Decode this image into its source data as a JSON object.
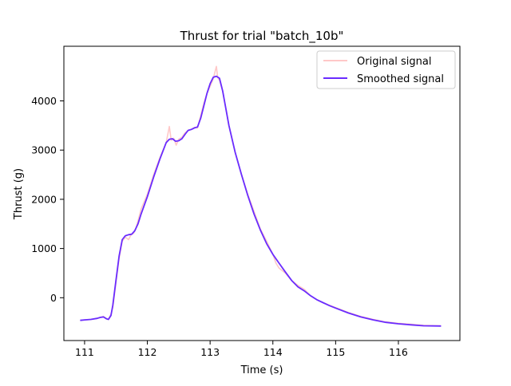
{
  "chart_data": {
    "type": "line",
    "title": "Thrust for trial \"batch_10b\"",
    "xlabel": "Time (s)",
    "ylabel": "Thrust (g)",
    "xlim": [
      110.67,
      116.98
    ],
    "ylim": [
      -870,
      5110
    ],
    "xticks": [
      111,
      112,
      113,
      114,
      115,
      116
    ],
    "yticks": [
      0,
      1000,
      2000,
      3000,
      4000
    ],
    "grid": false,
    "legend_position": "top-right",
    "series": [
      {
        "name": "Original signal",
        "color": "#ffc8c8",
        "x": [
          110.93,
          111.1,
          111.2,
          111.25,
          111.3,
          111.35,
          111.38,
          111.42,
          111.45,
          111.5,
          111.55,
          111.6,
          111.65,
          111.7,
          111.74,
          111.78,
          111.82,
          111.86,
          111.9,
          112.0,
          112.1,
          112.2,
          112.3,
          112.35,
          112.38,
          112.42,
          112.46,
          112.5,
          112.55,
          112.6,
          112.65,
          112.7,
          112.75,
          112.8,
          112.85,
          112.9,
          112.95,
          113.0,
          113.05,
          113.1,
          113.12,
          113.15,
          113.2,
          113.3,
          113.4,
          113.5,
          113.6,
          113.7,
          113.8,
          113.9,
          114.0,
          114.05,
          114.1,
          114.15,
          114.2,
          114.3,
          114.4,
          114.5,
          114.6,
          114.7,
          114.8,
          115.0,
          115.2,
          115.4,
          115.6,
          115.8,
          116.0,
          116.2,
          116.4,
          116.68
        ],
        "y": [
          -460,
          -440,
          -420,
          -400,
          -380,
          -430,
          -440,
          -330,
          -200,
          300,
          800,
          1150,
          1230,
          1180,
          1280,
          1310,
          1420,
          1600,
          1800,
          2100,
          2500,
          2850,
          3150,
          3480,
          3200,
          3240,
          3100,
          3220,
          3260,
          3350,
          3400,
          3420,
          3460,
          3450,
          3700,
          3950,
          4150,
          4300,
          4450,
          4700,
          4480,
          4420,
          4200,
          3500,
          2950,
          2500,
          2100,
          1750,
          1400,
          1150,
          880,
          700,
          600,
          550,
          500,
          350,
          250,
          170,
          40,
          -40,
          -100,
          -200,
          -300,
          -380,
          -440,
          -490,
          -520,
          -540,
          -560,
          -570
        ]
      },
      {
        "name": "Smoothed signal",
        "color": "#6a2cff",
        "x": [
          110.93,
          111.0,
          111.1,
          111.2,
          111.25,
          111.3,
          111.35,
          111.38,
          111.42,
          111.45,
          111.5,
          111.55,
          111.6,
          111.65,
          111.7,
          111.75,
          111.8,
          111.85,
          111.9,
          112.0,
          112.1,
          112.2,
          112.3,
          112.35,
          112.4,
          112.45,
          112.5,
          112.55,
          112.6,
          112.65,
          112.7,
          112.75,
          112.8,
          112.85,
          112.9,
          112.95,
          113.0,
          113.05,
          113.1,
          113.15,
          113.2,
          113.3,
          113.4,
          113.5,
          113.6,
          113.7,
          113.8,
          113.9,
          114.0,
          114.1,
          114.2,
          114.3,
          114.4,
          114.5,
          114.6,
          114.7,
          114.8,
          114.9,
          115.0,
          115.2,
          115.4,
          115.6,
          115.8,
          116.0,
          116.2,
          116.4,
          116.68
        ],
        "y": [
          -460,
          -450,
          -440,
          -420,
          -400,
          -390,
          -430,
          -440,
          -360,
          -150,
          350,
          850,
          1180,
          1260,
          1280,
          1290,
          1360,
          1500,
          1700,
          2050,
          2450,
          2820,
          3150,
          3220,
          3230,
          3180,
          3190,
          3230,
          3320,
          3400,
          3420,
          3450,
          3470,
          3650,
          3900,
          4150,
          4350,
          4480,
          4500,
          4460,
          4200,
          3500,
          2950,
          2500,
          2080,
          1700,
          1380,
          1100,
          880,
          700,
          520,
          350,
          220,
          140,
          40,
          -40,
          -100,
          -160,
          -210,
          -310,
          -390,
          -450,
          -500,
          -530,
          -550,
          -570,
          -575
        ]
      }
    ]
  }
}
